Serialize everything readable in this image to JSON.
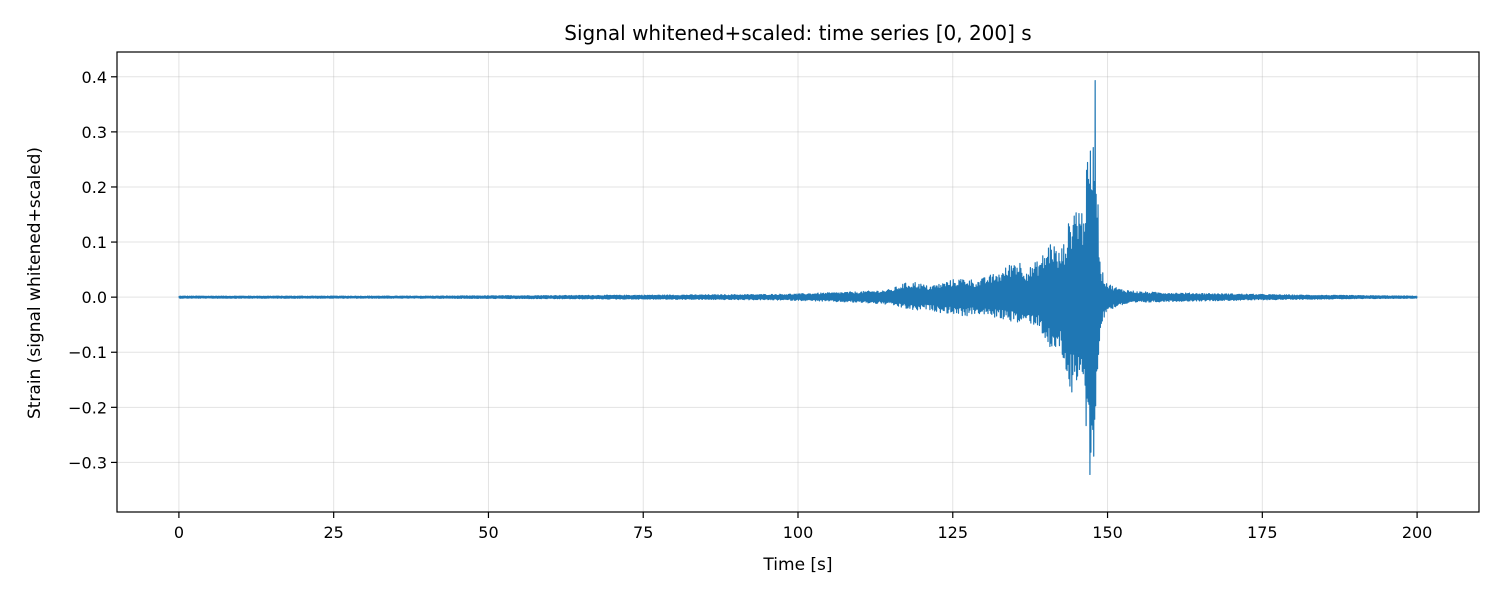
{
  "chart_data": {
    "type": "line",
    "title": "Signal whitened+scaled: time series [0, 200] s",
    "xlabel": "Time [s]",
    "ylabel": "Strain (signal whitened+scaled)",
    "xlim": [
      -10,
      210
    ],
    "ylim": [
      -0.39,
      0.445
    ],
    "xticks": [
      0,
      25,
      50,
      75,
      100,
      125,
      150,
      175,
      200
    ],
    "xtick_labels": [
      "0",
      "25",
      "50",
      "75",
      "100",
      "125",
      "150",
      "175",
      "200"
    ],
    "yticks": [
      0.4,
      0.3,
      0.2,
      0.1,
      0.0,
      -0.1,
      -0.2,
      -0.3
    ],
    "ytick_labels": [
      "0.4",
      "0.3",
      "0.2",
      "0.1",
      "0.0",
      "−0.1",
      "−0.2",
      "−0.3"
    ],
    "grid": true,
    "color": "#1f77b4",
    "series": [
      {
        "envelope": {
          "x": [
            0,
            20,
            40,
            60,
            80,
            95,
            100,
            105,
            110,
            113,
            115,
            117,
            119,
            121,
            123,
            125,
            127,
            129,
            131,
            133,
            135,
            136,
            137,
            139,
            140,
            141,
            142,
            143,
            144,
            145,
            146,
            146.5,
            147,
            147.5,
            148,
            148.3,
            148.6,
            149,
            150,
            152,
            155,
            160,
            170,
            180,
            190,
            200
          ],
          "upper": [
            0.002,
            0.002,
            0.002,
            0.003,
            0.004,
            0.005,
            0.006,
            0.008,
            0.01,
            0.012,
            0.014,
            0.025,
            0.028,
            0.02,
            0.025,
            0.032,
            0.035,
            0.03,
            0.04,
            0.048,
            0.07,
            0.065,
            0.05,
            0.07,
            0.085,
            0.11,
            0.08,
            0.1,
            0.15,
            0.18,
            0.16,
            0.22,
            0.27,
            0.29,
            0.41,
            0.25,
            0.12,
            0.05,
            0.025,
            0.015,
            0.01,
            0.008,
            0.006,
            0.004,
            0.003,
            0.002
          ],
          "lower": [
            -0.002,
            -0.002,
            -0.002,
            -0.003,
            -0.004,
            -0.005,
            -0.006,
            -0.008,
            -0.01,
            -0.012,
            -0.014,
            -0.02,
            -0.025,
            -0.022,
            -0.028,
            -0.03,
            -0.035,
            -0.03,
            -0.035,
            -0.04,
            -0.045,
            -0.05,
            -0.045,
            -0.055,
            -0.08,
            -0.11,
            -0.09,
            -0.12,
            -0.18,
            -0.19,
            -0.15,
            -0.25,
            -0.31,
            -0.35,
            -0.25,
            -0.2,
            -0.1,
            -0.05,
            -0.025,
            -0.015,
            -0.01,
            -0.008,
            -0.006,
            -0.004,
            -0.003,
            -0.002
          ]
        }
      }
    ]
  }
}
